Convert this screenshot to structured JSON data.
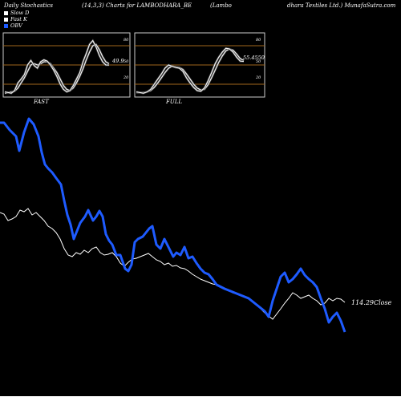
{
  "header": {
    "left": "Daily Stochastics",
    "middle": "(14,3,3) Charts for LAMBODHARA_BE",
    "right1": "(Lambo",
    "right2": "dhara  Textiles Ltd.) MunafaSutra.com"
  },
  "legend": [
    {
      "label": "Slow  D",
      "color": "#ffffff"
    },
    {
      "label": "Fast K",
      "color": "#ffffff"
    },
    {
      "label": "OBV",
      "color": "#1e5bff"
    }
  ],
  "colors": {
    "obv": "#1e5bff",
    "close": "#ffffff",
    "stoch": "#ffffff",
    "band": "#a0661c",
    "panel_border": "#cccccc"
  },
  "panels": [
    {
      "title": "FAST",
      "last_value_label": "49.9",
      "yticks": [
        "80",
        "50",
        "20"
      ],
      "ylim": [
        0,
        100
      ],
      "fast_k": [
        8,
        7,
        6,
        10,
        22,
        28,
        35,
        50,
        57,
        49,
        45,
        55,
        58,
        56,
        50,
        42,
        32,
        20,
        12,
        8,
        10,
        18,
        28,
        38,
        55,
        68,
        82,
        88,
        78,
        65,
        55,
        50,
        49.9
      ],
      "slow_d": [
        6,
        7,
        8,
        9,
        14,
        22,
        30,
        40,
        50,
        52,
        50,
        52,
        55,
        55,
        52,
        45,
        38,
        28,
        18,
        12,
        10,
        14,
        22,
        32,
        44,
        58,
        70,
        80,
        82,
        74,
        63,
        55,
        52
      ]
    },
    {
      "title": "FULL",
      "last_value_label": "55.4550",
      "yticks": [
        "80",
        "50",
        "20"
      ],
      "ylim": [
        0,
        100
      ],
      "fast_k": [
        8,
        7,
        6,
        8,
        12,
        20,
        28,
        36,
        45,
        50,
        48,
        46,
        45,
        40,
        30,
        22,
        15,
        10,
        9,
        14,
        25,
        38,
        52,
        62,
        70,
        76,
        75,
        70,
        62,
        56,
        55.45
      ],
      "slow_d": [
        7,
        7,
        7,
        8,
        10,
        15,
        22,
        30,
        38,
        45,
        48,
        47,
        46,
        43,
        36,
        28,
        20,
        14,
        11,
        12,
        19,
        30,
        42,
        54,
        64,
        72,
        75,
        73,
        67,
        60,
        57
      ]
    }
  ],
  "chart_data": {
    "type": "line",
    "title": "Daily Stochastics (14,3,3) Charts for LAMBODHARA_BE",
    "series": [
      {
        "name": "OBV",
        "x": [
          0,
          5,
          12,
          20,
          24,
          30,
          36,
          42,
          48,
          52,
          56,
          60,
          65,
          70,
          76,
          80,
          84,
          88,
          92,
          96,
          100,
          106,
          110,
          116,
          120,
          124,
          128,
          132,
          136,
          140,
          145,
          150,
          156,
          160,
          164,
          168,
          172,
          178,
          182,
          186,
          190,
          195,
          200,
          205,
          210,
          216,
          220,
          225,
          230,
          235,
          240,
          245,
          250,
          255,
          260,
          265,
          270,
          280,
          290,
          300,
          310,
          320,
          330,
          335,
          340,
          345,
          350,
          355,
          360,
          365,
          370,
          375,
          380,
          385,
          390,
          395,
          400,
          405,
          410,
          415,
          420,
          425,
          430
        ],
        "values": [
          153,
          153,
          162,
          170,
          188,
          165,
          148,
          155,
          170,
          190,
          205,
          210,
          215,
          222,
          230,
          250,
          268,
          280,
          298,
          288,
          278,
          270,
          262,
          275,
          270,
          263,
          270,
          292,
          300,
          305,
          318,
          318,
          335,
          338,
          330,
          302,
          298,
          295,
          290,
          285,
          282,
          305,
          310,
          298,
          308,
          320,
          315,
          318,
          308,
          322,
          320,
          328,
          335,
          340,
          342,
          348,
          355,
          360,
          364,
          368,
          372,
          380,
          388,
          395,
          375,
          360,
          345,
          340,
          352,
          348,
          342,
          335,
          343,
          348,
          352,
          358,
          372,
          385,
          402,
          395,
          390,
          400,
          414
        ]
      },
      {
        "name": "Close",
        "x": [
          0,
          5,
          10,
          15,
          20,
          25,
          30,
          35,
          40,
          45,
          50,
          55,
          60,
          65,
          70,
          75,
          80,
          85,
          90,
          95,
          100,
          105,
          110,
          115,
          120,
          125,
          130,
          135,
          140,
          145,
          150,
          155,
          160,
          165,
          170,
          175,
          180,
          185,
          190,
          195,
          200,
          205,
          210,
          215,
          220,
          225,
          230,
          235,
          240,
          245,
          250,
          255,
          260,
          265,
          270,
          275,
          280,
          285,
          290,
          300,
          310,
          320,
          330,
          340,
          350,
          355,
          360,
          365,
          370,
          375,
          380,
          385,
          390,
          395,
          400,
          405,
          410,
          415,
          420,
          425,
          430
        ],
        "values": [
          265,
          267,
          275,
          273,
          270,
          262,
          264,
          260,
          268,
          265,
          270,
          275,
          282,
          285,
          290,
          298,
          310,
          318,
          320,
          315,
          317,
          312,
          315,
          310,
          308,
          315,
          318,
          317,
          315,
          320,
          328,
          332,
          327,
          323,
          322,
          320,
          318,
          316,
          320,
          324,
          326,
          330,
          328,
          332,
          331,
          334,
          335,
          338,
          342,
          345,
          348,
          350,
          352,
          354,
          355,
          358,
          360,
          362,
          365,
          368,
          372,
          380,
          390,
          398,
          385,
          378,
          372,
          365,
          368,
          372,
          370,
          368,
          372,
          375,
          380,
          378,
          372,
          375,
          372,
          373,
          377
        ]
      }
    ],
    "close_label": "114.29Close"
  }
}
